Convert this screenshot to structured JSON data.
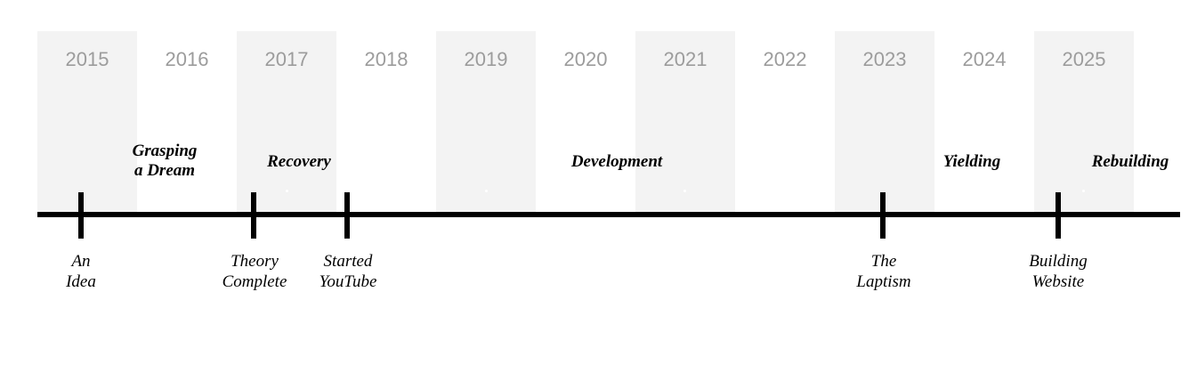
{
  "years": [
    "2015",
    "2016",
    "2017",
    "2018",
    "2019",
    "2020",
    "2021",
    "2022",
    "2023",
    "2024",
    "2025"
  ],
  "shaded_years": [
    "2015",
    "2017",
    "2019",
    "2021",
    "2023",
    "2025"
  ],
  "colors": {
    "band": "#f3f3f3",
    "year_text": "#9c9c9c",
    "axis": "#000000"
  },
  "phases": [
    {
      "lines": [
        "Grasping",
        "a Dream"
      ]
    },
    {
      "lines": [
        "Recovery"
      ]
    },
    {
      "lines": [
        "Development"
      ]
    },
    {
      "lines": [
        "Yielding"
      ]
    },
    {
      "lines": [
        "Rebuilding"
      ]
    }
  ],
  "events": [
    {
      "lines": [
        "An",
        "Idea"
      ]
    },
    {
      "lines": [
        "Theory",
        "Complete"
      ]
    },
    {
      "lines": [
        "Started",
        "YouTube"
      ]
    },
    {
      "lines": [
        "The",
        "Laptism"
      ]
    },
    {
      "lines": [
        "Building",
        "Website"
      ]
    }
  ]
}
